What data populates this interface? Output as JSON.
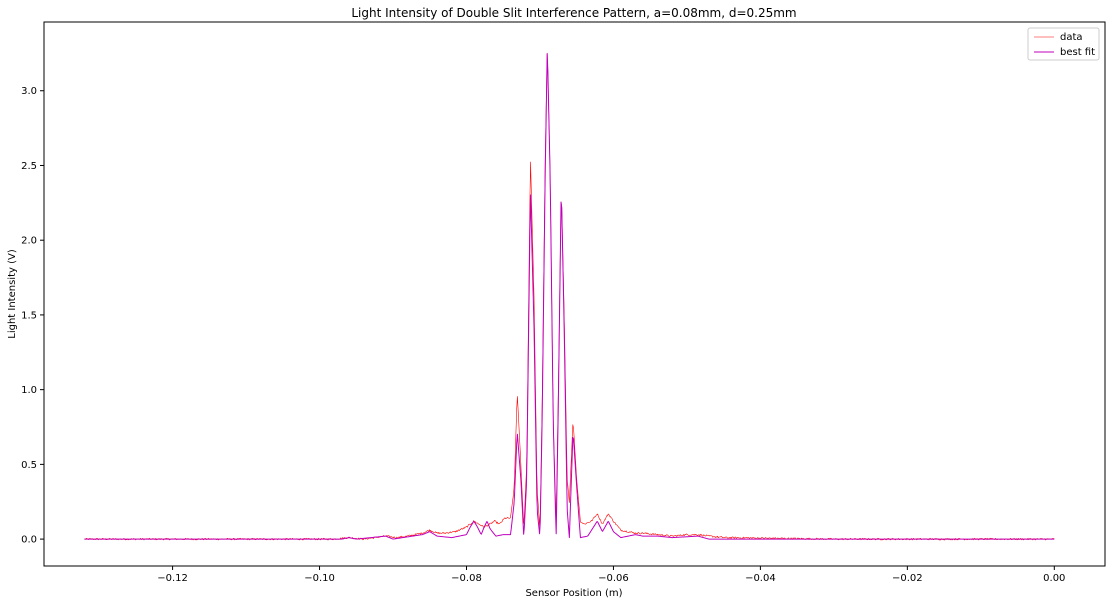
{
  "chart_data": {
    "type": "line",
    "title": "Light Intensity of Double Slit Interference Pattern, a=0.08mm, d=0.25mm",
    "xlabel": "Sensor Position (m)",
    "ylabel": "Light Intensity (V)",
    "xlim": [
      -0.1375,
      0.0069
    ],
    "ylim": [
      -0.18,
      3.46
    ],
    "x_ticks": [
      -0.12,
      -0.1,
      -0.08,
      -0.06,
      -0.04,
      -0.02,
      0.0
    ],
    "x_tick_labels": [
      "−0.12",
      "−0.10",
      "−0.08",
      "−0.06",
      "−0.04",
      "−0.02",
      "0.00"
    ],
    "y_ticks": [
      0.0,
      0.5,
      1.0,
      1.5,
      2.0,
      2.5,
      3.0
    ],
    "y_tick_labels": [
      "0.0",
      "0.5",
      "1.0",
      "1.5",
      "2.0",
      "2.5",
      "3.0"
    ],
    "x_range": [
      -0.132,
      0.0
    ],
    "grid": false,
    "legend": "top-right",
    "series": [
      {
        "name": "data",
        "color": "#ff0000",
        "line_width": 0.6,
        "points": [
          [
            -0.132,
            0.0
          ],
          [
            -0.098,
            0.0
          ],
          [
            -0.096,
            0.01
          ],
          [
            -0.094,
            0.0
          ],
          [
            -0.091,
            0.02
          ],
          [
            -0.0895,
            0.01
          ],
          [
            -0.088,
            0.02
          ],
          [
            -0.086,
            0.04
          ],
          [
            -0.085,
            0.06
          ],
          [
            -0.084,
            0.04
          ],
          [
            -0.083,
            0.04
          ],
          [
            -0.0815,
            0.05
          ],
          [
            -0.08,
            0.08
          ],
          [
            -0.079,
            0.12
          ],
          [
            -0.0783,
            0.1
          ],
          [
            -0.0776,
            0.08
          ],
          [
            -0.0768,
            0.1
          ],
          [
            -0.0762,
            0.12
          ],
          [
            -0.0755,
            0.1
          ],
          [
            -0.0748,
            0.14
          ],
          [
            -0.074,
            0.14
          ],
          [
            -0.0735,
            0.35
          ],
          [
            -0.0731,
            0.98
          ],
          [
            -0.0727,
            0.6
          ],
          [
            -0.0722,
            0.08
          ],
          [
            -0.0718,
            0.5
          ],
          [
            -0.0713,
            2.56
          ],
          [
            -0.0708,
            1.6
          ],
          [
            -0.0704,
            0.35
          ],
          [
            -0.07,
            0.05
          ],
          [
            -0.0697,
            0.9
          ],
          [
            -0.0693,
            2.5
          ],
          [
            -0.069,
            3.3
          ],
          [
            -0.0686,
            2.4
          ],
          [
            -0.0682,
            0.8
          ],
          [
            -0.0678,
            0.1
          ],
          [
            -0.0675,
            1.0
          ],
          [
            -0.0671,
            2.36
          ],
          [
            -0.0667,
            1.5
          ],
          [
            -0.0663,
            0.4
          ],
          [
            -0.066,
            0.25
          ],
          [
            -0.0655,
            0.8
          ],
          [
            -0.065,
            0.4
          ],
          [
            -0.0645,
            0.12
          ],
          [
            -0.064,
            0.1
          ],
          [
            -0.063,
            0.12
          ],
          [
            -0.0622,
            0.17
          ],
          [
            -0.0615,
            0.1
          ],
          [
            -0.0607,
            0.17
          ],
          [
            -0.06,
            0.12
          ],
          [
            -0.059,
            0.06
          ],
          [
            -0.058,
            0.05
          ],
          [
            -0.057,
            0.04
          ],
          [
            -0.056,
            0.04
          ],
          [
            -0.054,
            0.03
          ],
          [
            -0.052,
            0.02
          ],
          [
            -0.05,
            0.03
          ],
          [
            -0.0485,
            0.03
          ],
          [
            -0.047,
            0.02
          ],
          [
            -0.045,
            0.01
          ],
          [
            -0.03,
            0.0
          ],
          [
            0.0,
            0.0
          ]
        ]
      },
      {
        "name": "best fit",
        "color": "#bf00bf",
        "line_width": 1.0,
        "points": [
          [
            -0.132,
            0.0
          ],
          [
            -0.097,
            0.0
          ],
          [
            -0.096,
            0.01
          ],
          [
            -0.095,
            0.0
          ],
          [
            -0.091,
            0.02
          ],
          [
            -0.09,
            0.0
          ],
          [
            -0.086,
            0.03
          ],
          [
            -0.085,
            0.05
          ],
          [
            -0.084,
            0.02
          ],
          [
            -0.082,
            0.01
          ],
          [
            -0.08,
            0.03
          ],
          [
            -0.0795,
            0.08
          ],
          [
            -0.079,
            0.12
          ],
          [
            -0.0785,
            0.08
          ],
          [
            -0.078,
            0.03
          ],
          [
            -0.0776,
            0.08
          ],
          [
            -0.0772,
            0.12
          ],
          [
            -0.0768,
            0.07
          ],
          [
            -0.076,
            0.02
          ],
          [
            -0.075,
            0.03
          ],
          [
            -0.074,
            0.03
          ],
          [
            -0.0735,
            0.25
          ],
          [
            -0.0731,
            0.72
          ],
          [
            -0.0726,
            0.4
          ],
          [
            -0.0722,
            0.01
          ],
          [
            -0.0718,
            0.4
          ],
          [
            -0.0713,
            2.34
          ],
          [
            -0.0708,
            1.4
          ],
          [
            -0.0704,
            0.2
          ],
          [
            -0.07,
            0.01
          ],
          [
            -0.0697,
            0.8
          ],
          [
            -0.0693,
            2.4
          ],
          [
            -0.069,
            3.3
          ],
          [
            -0.0686,
            2.4
          ],
          [
            -0.0682,
            0.8
          ],
          [
            -0.0678,
            0.01
          ],
          [
            -0.0675,
            0.9
          ],
          [
            -0.0671,
            2.37
          ],
          [
            -0.0667,
            1.4
          ],
          [
            -0.0663,
            0.2
          ],
          [
            -0.066,
            0.01
          ],
          [
            -0.0655,
            0.72
          ],
          [
            -0.065,
            0.35
          ],
          [
            -0.0645,
            0.01
          ],
          [
            -0.0635,
            0.02
          ],
          [
            -0.0622,
            0.12
          ],
          [
            -0.0615,
            0.05
          ],
          [
            -0.0607,
            0.12
          ],
          [
            -0.06,
            0.05
          ],
          [
            -0.059,
            0.01
          ],
          [
            -0.057,
            0.03
          ],
          [
            -0.056,
            0.02
          ],
          [
            -0.054,
            0.02
          ],
          [
            -0.052,
            0.01
          ],
          [
            -0.0485,
            0.02
          ],
          [
            -0.047,
            0.0
          ],
          [
            -0.03,
            0.0
          ],
          [
            0.0,
            0.0
          ]
        ]
      }
    ]
  }
}
